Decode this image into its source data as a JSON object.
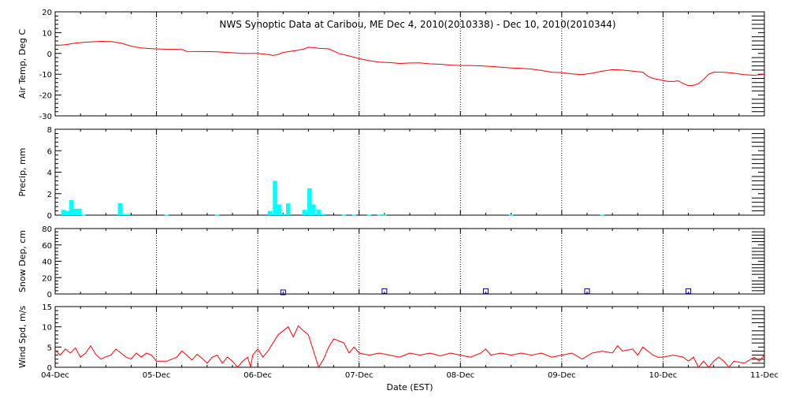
{
  "chart_data": {
    "title": "NWS Synoptic Data at Caribou, ME   Dec  4, 2010(2010338) - Dec 10, 2010(2010344)",
    "xlabel": "Date (EST)",
    "x_unit": "days",
    "x_range": [
      "04-Dec",
      "11-Dec"
    ],
    "x_ticks": [
      {
        "day": 0,
        "label": "04-Dec"
      },
      {
        "day": 1,
        "label": "05-Dec"
      },
      {
        "day": 2,
        "label": "06-Dec"
      },
      {
        "day": 3,
        "label": "07-Dec"
      },
      {
        "day": 4,
        "label": "08-Dec"
      },
      {
        "day": 5,
        "label": "09-Dec"
      },
      {
        "day": 6,
        "label": "10-Dec"
      },
      {
        "day": 7,
        "label": "11-Dec"
      }
    ],
    "grid": "dotted vertical lines at day boundaries",
    "colors": {
      "air_temp": "#ff0000",
      "precip": "#00ffff",
      "snow_depth": "#000080",
      "wind_speed": "#ff0000"
    },
    "panels": [
      {
        "id": "air-temp",
        "type": "line",
        "ylabel": "Air Temp, Deg C",
        "ylim": [
          -30,
          20
        ],
        "yticks": [
          20,
          10,
          0,
          -10,
          -20,
          -30
        ],
        "points": [
          [
            0,
            3.8
          ],
          [
            0.1,
            4.2
          ],
          [
            0.2,
            5
          ],
          [
            0.3,
            5.4
          ],
          [
            0.45,
            5.8
          ],
          [
            0.55,
            5.7
          ],
          [
            0.65,
            5
          ],
          [
            0.75,
            3.5
          ],
          [
            0.85,
            2.6
          ],
          [
            0.95,
            2.3
          ],
          [
            1.1,
            2
          ],
          [
            1.25,
            1.9
          ],
          [
            1.3,
            1
          ],
          [
            1.45,
            0.9
          ],
          [
            1.6,
            0.8
          ],
          [
            1.75,
            0.3
          ],
          [
            1.85,
            0
          ],
          [
            2.0,
            0
          ],
          [
            2.1,
            -0.5
          ],
          [
            2.15,
            -1
          ],
          [
            2.2,
            -0.5
          ],
          [
            2.25,
            0.5
          ],
          [
            2.35,
            1.2
          ],
          [
            2.45,
            2
          ],
          [
            2.5,
            3
          ],
          [
            2.55,
            2.8
          ],
          [
            2.6,
            2.5
          ],
          [
            2.7,
            2.2
          ],
          [
            2.8,
            0
          ],
          [
            2.9,
            -1.2
          ],
          [
            3.0,
            -2.5
          ],
          [
            3.1,
            -3.5
          ],
          [
            3.2,
            -4.2
          ],
          [
            3.3,
            -4.4
          ],
          [
            3.4,
            -4.8
          ],
          [
            3.5,
            -4.6
          ],
          [
            3.6,
            -4.5
          ],
          [
            3.7,
            -5
          ],
          [
            3.8,
            -5.2
          ],
          [
            3.9,
            -5.6
          ],
          [
            4.0,
            -5.8
          ],
          [
            4.1,
            -5.8
          ],
          [
            4.2,
            -6
          ],
          [
            4.3,
            -6.2
          ],
          [
            4.4,
            -6.6
          ],
          [
            4.5,
            -7
          ],
          [
            4.6,
            -7.2
          ],
          [
            4.7,
            -7.5
          ],
          [
            4.8,
            -8.2
          ],
          [
            4.9,
            -9
          ],
          [
            5.0,
            -9.2
          ],
          [
            5.1,
            -9.8
          ],
          [
            5.2,
            -10.2
          ],
          [
            5.3,
            -9.5
          ],
          [
            5.4,
            -8.5
          ],
          [
            5.5,
            -7.8
          ],
          [
            5.6,
            -8
          ],
          [
            5.7,
            -8.5
          ],
          [
            5.8,
            -9
          ],
          [
            5.85,
            -11
          ],
          [
            5.9,
            -12
          ],
          [
            5.95,
            -12.5
          ],
          [
            6.0,
            -13
          ],
          [
            6.05,
            -13.5
          ],
          [
            6.1,
            -13.5
          ],
          [
            6.15,
            -13.2
          ],
          [
            6.2,
            -14.5
          ],
          [
            6.25,
            -15.5
          ],
          [
            6.3,
            -15.3
          ],
          [
            6.35,
            -14.5
          ],
          [
            6.4,
            -12.5
          ],
          [
            6.45,
            -10
          ],
          [
            6.5,
            -9
          ],
          [
            6.6,
            -9
          ],
          [
            6.7,
            -9.5
          ],
          [
            6.8,
            -10.2
          ],
          [
            6.9,
            -10.5
          ],
          [
            7.0,
            -10
          ]
        ]
      },
      {
        "id": "precip",
        "type": "bar",
        "ylabel": "Precip, mm",
        "ylim": [
          0,
          8
        ],
        "yticks": [
          8,
          6,
          4,
          2,
          0
        ],
        "bar_width_days": 0.042,
        "bars": [
          [
            0.08,
            0.5
          ],
          [
            0.12,
            0.4
          ],
          [
            0.16,
            1.4
          ],
          [
            0.2,
            0.6
          ],
          [
            0.24,
            0.6
          ],
          [
            0.28,
            0.05
          ],
          [
            0.64,
            1.1
          ],
          [
            0.68,
            0.1
          ],
          [
            0.72,
            0.1
          ],
          [
            1.1,
            0.05
          ],
          [
            1.6,
            0.05
          ],
          [
            2.12,
            0.4
          ],
          [
            2.17,
            3.2
          ],
          [
            2.21,
            1.0
          ],
          [
            2.25,
            0.1
          ],
          [
            2.3,
            1.1
          ],
          [
            2.46,
            0.5
          ],
          [
            2.51,
            2.5
          ],
          [
            2.55,
            1.0
          ],
          [
            2.6,
            0.5
          ],
          [
            2.65,
            0.1
          ],
          [
            2.85,
            0.05
          ],
          [
            2.95,
            0.05
          ],
          [
            3.1,
            0.05
          ],
          [
            3.2,
            0.05
          ],
          [
            3.25,
            0.05
          ],
          [
            4.5,
            0.05
          ],
          [
            5.4,
            0.05
          ]
        ]
      },
      {
        "id": "snow-depth",
        "type": "scatter",
        "ylabel": "Snow Dep, cm",
        "ylim": [
          0,
          80
        ],
        "yticks": [
          80,
          60,
          40,
          20,
          0
        ],
        "points": [
          [
            2.25,
            2
          ],
          [
            3.25,
            3.5
          ],
          [
            4.25,
            3.5
          ],
          [
            5.25,
            3.5
          ],
          [
            6.25,
            3.5
          ]
        ]
      },
      {
        "id": "wind-speed",
        "type": "line",
        "ylabel": "Wind Spd, m/s",
        "ylim": [
          0,
          15
        ],
        "yticks": [
          15,
          10,
          5,
          0
        ],
        "points": [
          [
            0,
            4.2
          ],
          [
            0.05,
            3.0
          ],
          [
            0.1,
            4.5
          ],
          [
            0.15,
            3.5
          ],
          [
            0.2,
            4.8
          ],
          [
            0.25,
            2.5
          ],
          [
            0.3,
            3.5
          ],
          [
            0.35,
            5.3
          ],
          [
            0.4,
            3.2
          ],
          [
            0.45,
            2.0
          ],
          [
            0.5,
            2.6
          ],
          [
            0.55,
            3.0
          ],
          [
            0.6,
            4.5
          ],
          [
            0.65,
            3.5
          ],
          [
            0.7,
            2.5
          ],
          [
            0.75,
            2.0
          ],
          [
            0.8,
            3.5
          ],
          [
            0.85,
            2.5
          ],
          [
            0.9,
            3.5
          ],
          [
            0.95,
            3.0
          ],
          [
            1.0,
            1.5
          ],
          [
            1.1,
            1.5
          ],
          [
            1.2,
            2.5
          ],
          [
            1.25,
            4.0
          ],
          [
            1.3,
            3.0
          ],
          [
            1.35,
            1.8
          ],
          [
            1.4,
            3.2
          ],
          [
            1.45,
            2.2
          ],
          [
            1.5,
            1.0
          ],
          [
            1.55,
            2.5
          ],
          [
            1.6,
            3.0
          ],
          [
            1.65,
            1.0
          ],
          [
            1.7,
            2.5
          ],
          [
            1.75,
            1.5
          ],
          [
            1.8,
            0
          ],
          [
            1.85,
            1.5
          ],
          [
            1.9,
            2.5
          ],
          [
            1.93,
            0
          ],
          [
            1.95,
            3.0
          ],
          [
            2.0,
            4.5
          ],
          [
            2.05,
            2.5
          ],
          [
            2.1,
            4.0
          ],
          [
            2.15,
            6.0
          ],
          [
            2.2,
            8.0
          ],
          [
            2.25,
            9.0
          ],
          [
            2.3,
            10.0
          ],
          [
            2.35,
            7.5
          ],
          [
            2.4,
            10.2
          ],
          [
            2.45,
            9.0
          ],
          [
            2.5,
            8.0
          ],
          [
            2.55,
            4.0
          ],
          [
            2.6,
            0
          ],
          [
            2.65,
            2.0
          ],
          [
            2.7,
            5.0
          ],
          [
            2.75,
            7.0
          ],
          [
            2.8,
            6.5
          ],
          [
            2.85,
            6.0
          ],
          [
            2.9,
            3.5
          ],
          [
            2.95,
            5.0
          ],
          [
            3.0,
            3.5
          ],
          [
            3.1,
            3.0
          ],
          [
            3.2,
            3.5
          ],
          [
            3.3,
            3.0
          ],
          [
            3.4,
            2.5
          ],
          [
            3.5,
            3.5
          ],
          [
            3.6,
            3.0
          ],
          [
            3.7,
            3.5
          ],
          [
            3.8,
            2.8
          ],
          [
            3.9,
            3.5
          ],
          [
            4.0,
            3.0
          ],
          [
            4.1,
            2.5
          ],
          [
            4.2,
            3.5
          ],
          [
            4.25,
            4.5
          ],
          [
            4.3,
            3.0
          ],
          [
            4.4,
            3.5
          ],
          [
            4.5,
            3.0
          ],
          [
            4.6,
            3.5
          ],
          [
            4.7,
            3.0
          ],
          [
            4.8,
            3.5
          ],
          [
            4.9,
            2.5
          ],
          [
            5.0,
            3.0
          ],
          [
            5.1,
            3.5
          ],
          [
            5.2,
            2.0
          ],
          [
            5.3,
            3.5
          ],
          [
            5.4,
            4.0
          ],
          [
            5.5,
            3.5
          ],
          [
            5.55,
            5.3
          ],
          [
            5.6,
            4.0
          ],
          [
            5.7,
            4.5
          ],
          [
            5.75,
            3.0
          ],
          [
            5.8,
            5.0
          ],
          [
            5.85,
            4.0
          ],
          [
            5.9,
            3.0
          ],
          [
            5.95,
            2.5
          ],
          [
            6.0,
            2.5
          ],
          [
            6.1,
            3.0
          ],
          [
            6.2,
            2.5
          ],
          [
            6.25,
            1.5
          ],
          [
            6.3,
            2.5
          ],
          [
            6.35,
            0
          ],
          [
            6.4,
            1.5
          ],
          [
            6.45,
            0
          ],
          [
            6.5,
            1.5
          ],
          [
            6.55,
            2.5
          ],
          [
            6.6,
            1.5
          ],
          [
            6.65,
            0
          ],
          [
            6.7,
            1.5
          ],
          [
            6.8,
            1.0
          ],
          [
            6.9,
            2.5
          ],
          [
            6.95,
            1.5
          ],
          [
            7.0,
            3.0
          ]
        ]
      }
    ]
  }
}
